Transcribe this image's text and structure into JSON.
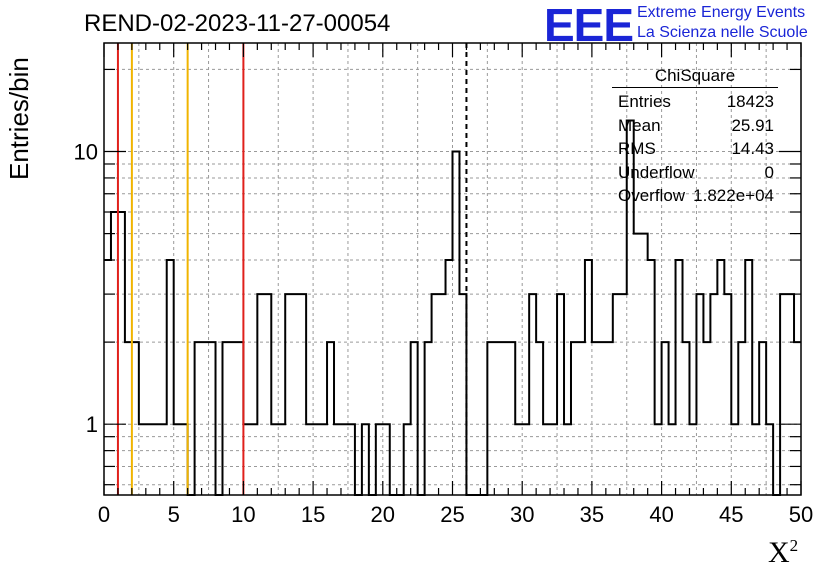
{
  "header": {
    "run_title": "REND-02-2023-11-27-00054",
    "logo_text": "EEE",
    "logo_line1": "Extreme Energy Events",
    "logo_line2": "La Scienza nelle Scuole",
    "logo_color": "#1a25d6"
  },
  "stats_box": {
    "title": "ChiSquare",
    "rows": [
      {
        "label": "Entries",
        "value": "18423"
      },
      {
        "label": "Mean",
        "value": "25.91"
      },
      {
        "label": "RMS",
        "value": "14.43"
      },
      {
        "label": "Underflow",
        "value": "0"
      },
      {
        "label": "Overflow",
        "value": "1.822e+04"
      }
    ]
  },
  "chart_data": {
    "type": "histogram",
    "title": "REND-02-2023-11-27-00054",
    "xlabel": "X",
    "xlabel_superscript": "2",
    "ylabel": "Entries/bin",
    "xlim": [
      0,
      50
    ],
    "ylim": [
      0.55,
      25
    ],
    "y_scale": "log",
    "grid": true,
    "bin_width": 0.5,
    "x_ticks": [
      "0",
      "5",
      "10",
      "15",
      "20",
      "25",
      "30",
      "35",
      "40",
      "45",
      "50"
    ],
    "y_ticks": [
      "1",
      "10"
    ],
    "bin_counts": [
      4,
      6,
      6,
      2,
      2,
      1,
      1,
      1,
      1,
      4,
      1,
      1,
      0,
      2,
      2,
      2,
      0,
      2,
      2,
      2,
      1,
      1,
      3,
      3,
      1,
      1,
      3,
      3,
      3,
      1,
      1,
      1,
      2,
      1,
      1,
      1,
      0,
      1,
      0,
      1,
      1,
      0,
      0,
      1,
      2,
      0,
      2,
      3,
      3,
      4,
      10,
      3,
      0,
      0,
      0,
      2,
      2,
      2,
      2,
      1,
      1,
      3,
      2,
      1,
      1,
      3,
      1,
      2,
      2,
      4,
      2,
      2,
      2,
      3,
      3,
      13,
      5,
      5,
      4,
      1,
      2,
      1,
      4,
      2,
      1,
      3,
      2,
      3,
      4,
      3,
      1,
      2,
      4,
      1,
      2,
      1,
      0,
      3,
      3,
      2
    ],
    "vertical_lines": [
      {
        "x": 1,
        "color": "#e0201b",
        "style": "solid"
      },
      {
        "x": 2,
        "color": "#f0b400",
        "style": "solid"
      },
      {
        "x": 6,
        "color": "#f0b400",
        "style": "solid"
      },
      {
        "x": 10,
        "color": "#e0201b",
        "style": "solid"
      },
      {
        "x": 26,
        "color": "#000000",
        "style": "dashed"
      }
    ]
  }
}
